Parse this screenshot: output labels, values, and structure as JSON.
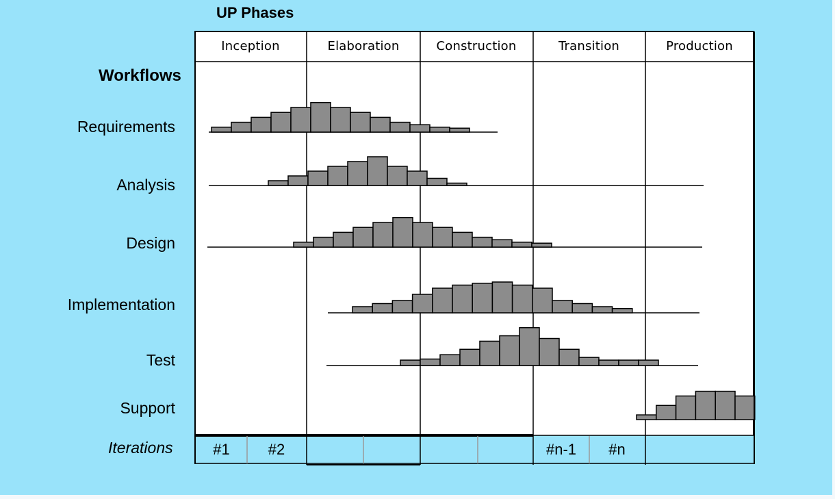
{
  "title": "UP Phases",
  "phases": [
    "Inception",
    "Elaboration",
    "Construction",
    "Transition",
    "Production"
  ],
  "workflows_heading": "Workflows",
  "workflows": [
    {
      "name": "Requirements",
      "levels": [
        1,
        2,
        3,
        4,
        5,
        6,
        5,
        4,
        3,
        2,
        1.5,
        1,
        0.8
      ]
    },
    {
      "name": "Analysis",
      "levels": [
        1,
        2,
        3,
        4,
        5,
        6,
        4,
        3,
        1.5,
        0.5
      ]
    },
    {
      "name": "Design",
      "levels": [
        1,
        2,
        3,
        4,
        5,
        6,
        5,
        4,
        3,
        2,
        1.5,
        1,
        0.8
      ]
    },
    {
      "name": "Implementation",
      "levels": [
        1,
        1.5,
        2,
        3,
        4,
        4.5,
        4.8,
        5,
        4.5,
        4,
        2,
        1.5,
        1,
        0.7
      ]
    },
    {
      "name": "Test",
      "levels": [
        1,
        1.2,
        2,
        3,
        4.5,
        5.5,
        7,
        5,
        3,
        1.5,
        1,
        1,
        1
      ]
    },
    {
      "name": "Support",
      "levels": [
        1,
        3,
        5,
        6,
        6,
        5
      ]
    }
  ],
  "iterations_label": "Iterations",
  "iterations": [
    "#1",
    "#2",
    "",
    "",
    "",
    "",
    "#n-1",
    "#n",
    ""
  ],
  "colors": {
    "background": "#99e3fa",
    "bar_fill": "#8c8c8c",
    "grid_fill": "#ffffff",
    "iteration_fill": "#99e3fa"
  }
}
